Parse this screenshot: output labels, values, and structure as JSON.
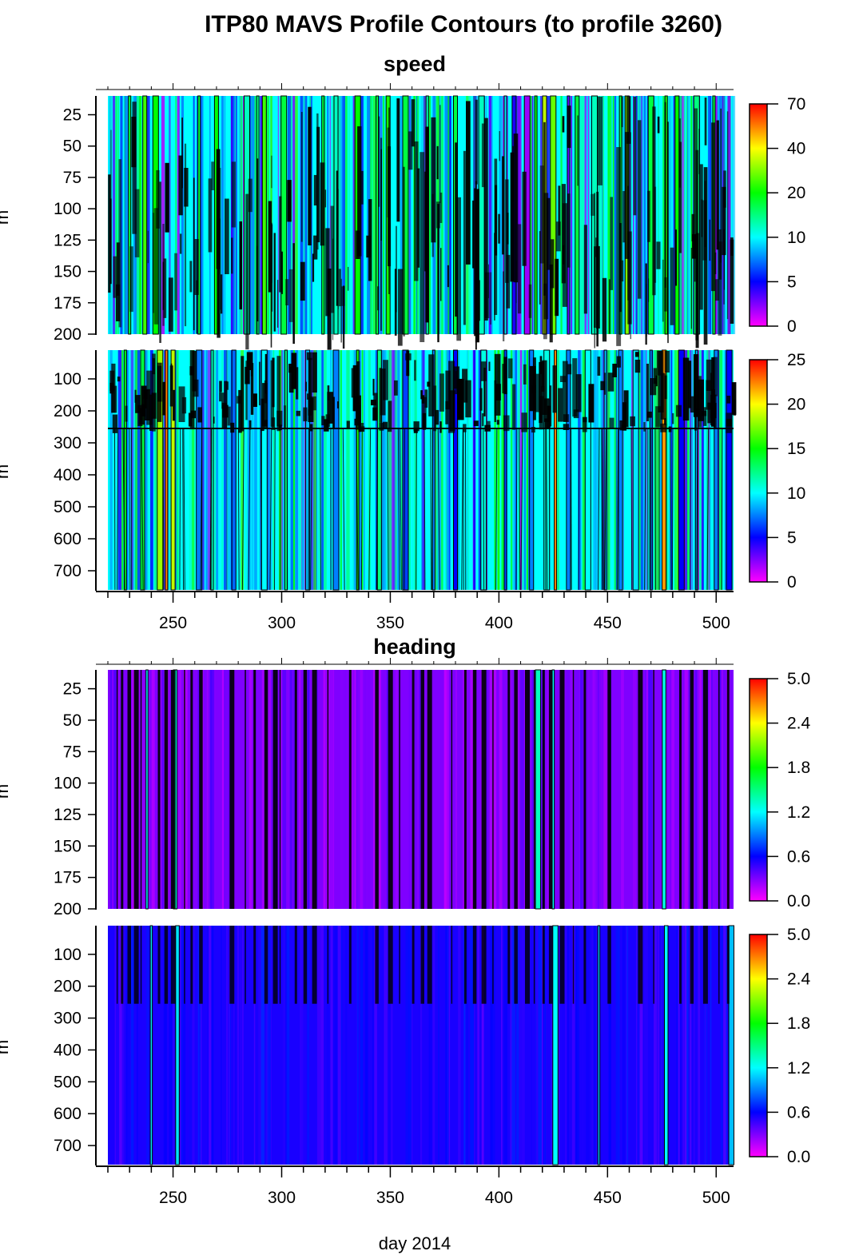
{
  "title": "ITP80 MAVS Profile Contours (to profile 3260)",
  "xlabel": "day 2014",
  "ylabel": "m",
  "colors": {
    "colorbar_stops": [
      "#ff00ff",
      "#7f00ff",
      "#0000ff",
      "#007fff",
      "#00ffff",
      "#00ff7f",
      "#00ff00",
      "#7fff00",
      "#ffff00",
      "#ff7f00",
      "#ff0000"
    ],
    "contour_line": "#000000",
    "gap": "#ffffff"
  },
  "chart_data": [
    {
      "type": "heatmap",
      "section": "speed",
      "section_title": "speed",
      "variable": "speed",
      "xlim": [
        220,
        508
      ],
      "ylim": [
        200,
        10
      ],
      "y_ticks": [
        25,
        50,
        75,
        100,
        125,
        150,
        175,
        200
      ],
      "x_ticks": [
        250,
        300,
        350,
        400,
        450,
        500
      ],
      "colorbar_ticks": [
        "0",
        "5",
        "10",
        "20",
        "40",
        "70"
      ],
      "background_level": 0.4,
      "bands": [
        {
          "day": 230,
          "level": 0.55
        },
        {
          "day": 237,
          "level": 0.65
        },
        {
          "day": 242,
          "level": 0.6
        },
        {
          "day": 262,
          "level": 0.55
        },
        {
          "day": 270,
          "level": 0.6
        },
        {
          "day": 284,
          "level": 0.45
        },
        {
          "day": 289,
          "level": 0.5
        },
        {
          "day": 292,
          "level": 0.65
        },
        {
          "day": 301,
          "level": 0.55
        },
        {
          "day": 319,
          "level": 0.55
        },
        {
          "day": 325,
          "level": 0.45
        },
        {
          "day": 335,
          "level": 0.6
        },
        {
          "day": 344,
          "level": 0.55
        },
        {
          "day": 349,
          "level": 0.62
        },
        {
          "day": 357,
          "level": 0.55
        },
        {
          "day": 367,
          "level": 0.45
        },
        {
          "day": 380,
          "level": 0.55
        },
        {
          "day": 392,
          "level": 0.45
        },
        {
          "day": 403,
          "level": 0.38
        },
        {
          "day": 407,
          "level": 0.18
        },
        {
          "day": 413,
          "level": 0.08
        },
        {
          "day": 417,
          "level": 0.6
        },
        {
          "day": 421,
          "level": 0.75
        },
        {
          "day": 425,
          "level": 0.68
        },
        {
          "day": 432,
          "level": 0.12
        },
        {
          "day": 436,
          "level": 0.55
        },
        {
          "day": 444,
          "level": 0.45
        },
        {
          "day": 456,
          "level": 0.55
        },
        {
          "day": 459,
          "level": 0.7
        },
        {
          "day": 470,
          "level": 0.55
        },
        {
          "day": 477,
          "level": 0.62
        },
        {
          "day": 482,
          "level": 0.6
        },
        {
          "day": 491,
          "level": 0.5
        },
        {
          "day": 499,
          "level": 0.55
        }
      ]
    },
    {
      "type": "heatmap",
      "section": "speed",
      "variable": "speed",
      "xlim": [
        220,
        508
      ],
      "ylim": [
        760,
        10
      ],
      "y_ticks": [
        100,
        200,
        300,
        400,
        500,
        600,
        700
      ],
      "x_ticks": [
        250,
        300,
        350,
        400,
        450,
        500
      ],
      "colorbar_ticks": [
        "0",
        "5",
        "10",
        "15",
        "20",
        "25"
      ],
      "background_level": 0.4,
      "bands": [
        {
          "day": 228,
          "level": 0.58
        },
        {
          "day": 236,
          "level": 0.55
        },
        {
          "day": 244,
          "level": 0.72
        },
        {
          "day": 247,
          "level": 0.9
        },
        {
          "day": 250,
          "level": 0.75
        },
        {
          "day": 262,
          "level": 0.3
        },
        {
          "day": 268,
          "level": 0.45
        },
        {
          "day": 278,
          "level": 0.28
        },
        {
          "day": 292,
          "level": 0.4
        },
        {
          "day": 302,
          "level": 0.5
        },
        {
          "day": 312,
          "level": 0.35
        },
        {
          "day": 325,
          "level": 0.3
        },
        {
          "day": 335,
          "level": 0.62
        },
        {
          "day": 345,
          "level": 0.5
        },
        {
          "day": 357,
          "level": 0.25
        },
        {
          "day": 370,
          "level": 0.3
        },
        {
          "day": 380,
          "level": 0.2
        },
        {
          "day": 393,
          "level": 0.42
        },
        {
          "day": 403,
          "level": 0.25
        },
        {
          "day": 415,
          "level": 0.3
        },
        {
          "day": 422,
          "level": 0.42
        },
        {
          "day": 426,
          "level": 0.9
        },
        {
          "day": 432,
          "level": 0.3
        },
        {
          "day": 441,
          "level": 0.4
        },
        {
          "day": 449,
          "level": 0.35
        },
        {
          "day": 456,
          "level": 0.3
        },
        {
          "day": 463,
          "level": 0.38
        },
        {
          "day": 470,
          "level": 0.3
        },
        {
          "day": 476,
          "level": 0.88
        },
        {
          "day": 484,
          "level": 0.2
        },
        {
          "day": 491,
          "level": 0.33
        },
        {
          "day": 500,
          "level": 0.3
        },
        {
          "day": 506,
          "level": 0.2
        }
      ]
    },
    {
      "type": "heatmap",
      "section": "heading",
      "section_title": "heading",
      "variable": "heading",
      "xlim": [
        220,
        508
      ],
      "ylim": [
        200,
        10
      ],
      "y_ticks": [
        25,
        50,
        75,
        100,
        125,
        150,
        175,
        200
      ],
      "x_ticks": [
        250,
        300,
        350,
        400,
        450,
        500
      ],
      "colorbar_ticks": [
        "0.0",
        "0.6",
        "1.2",
        "1.8",
        "2.4",
        "5.0"
      ],
      "background_level": 0.1,
      "bands": [
        {
          "day": 238,
          "level": 0.4
        },
        {
          "day": 251,
          "level": 0.42
        },
        {
          "day": 418,
          "level": 0.45
        },
        {
          "day": 425,
          "level": 0.4
        },
        {
          "day": 476,
          "level": 0.42
        }
      ]
    },
    {
      "type": "heatmap",
      "section": "heading",
      "variable": "heading",
      "xlim": [
        220,
        508
      ],
      "ylim": [
        760,
        10
      ],
      "y_ticks": [
        100,
        200,
        300,
        400,
        500,
        600,
        700
      ],
      "x_ticks": [
        250,
        300,
        350,
        400,
        450,
        500
      ],
      "colorbar_ticks": [
        "0.0",
        "0.6",
        "1.2",
        "1.8",
        "2.4",
        "5.0"
      ],
      "background_level": 0.18,
      "bands": [
        {
          "day": 240,
          "level": 0.38
        },
        {
          "day": 252,
          "level": 0.38
        },
        {
          "day": 426,
          "level": 0.4
        },
        {
          "day": 446,
          "level": 0.35
        },
        {
          "day": 477,
          "level": 0.4
        },
        {
          "day": 507,
          "level": 0.35
        }
      ]
    }
  ]
}
